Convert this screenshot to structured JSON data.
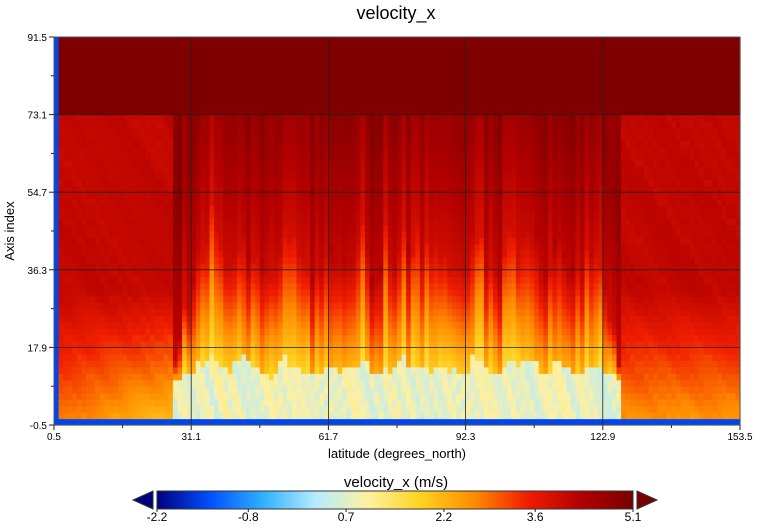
{
  "chart_data": {
    "type": "heatmap",
    "title": "velocity_x",
    "xlabel": "latitude (degrees_north)",
    "ylabel": "Axis index",
    "xlim": [
      0.5,
      153.5
    ],
    "ylim": [
      -0.5,
      91.5
    ],
    "x_ticks": [
      "0.5",
      "31.1",
      "61.7",
      "92.3",
      "122.9",
      "153.5"
    ],
    "y_ticks": [
      "-0.5",
      "17.9",
      "36.3",
      "54.7",
      "73.1",
      "91.5"
    ],
    "grid": true,
    "colorbar": {
      "label": "velocity_x (m/s)",
      "min": -2.2,
      "max": 5.1,
      "ticks": [
        "-2.2",
        "-0.8",
        "0.7",
        "2.2",
        "3.6",
        "5.1"
      ],
      "extend": "both",
      "colors": [
        "#00007f",
        "#0050ff",
        "#30b0ff",
        "#b4ecff",
        "#fff0a0",
        "#ffd21e",
        "#ff8c00",
        "#f01e00",
        "#b40000",
        "#780000"
      ]
    },
    "field_description_regions": {
      "low_band_value": 0.8,
      "upper_value": 5.0,
      "middle_value": 4.3,
      "edge_value": -1.5
    }
  }
}
